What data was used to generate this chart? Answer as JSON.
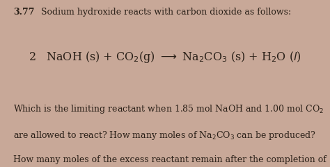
{
  "bg_color": "#c8a898",
  "text_color": "#2a2018",
  "figsize": [
    4.74,
    2.41
  ],
  "dpi": 100,
  "title_bold": "3.77",
  "title_rest": " Sodium hydroxide reacts with carbon dioxide as follows:",
  "fs_title": 9.0,
  "fs_eq": 11.5,
  "fs_body": 9.0
}
